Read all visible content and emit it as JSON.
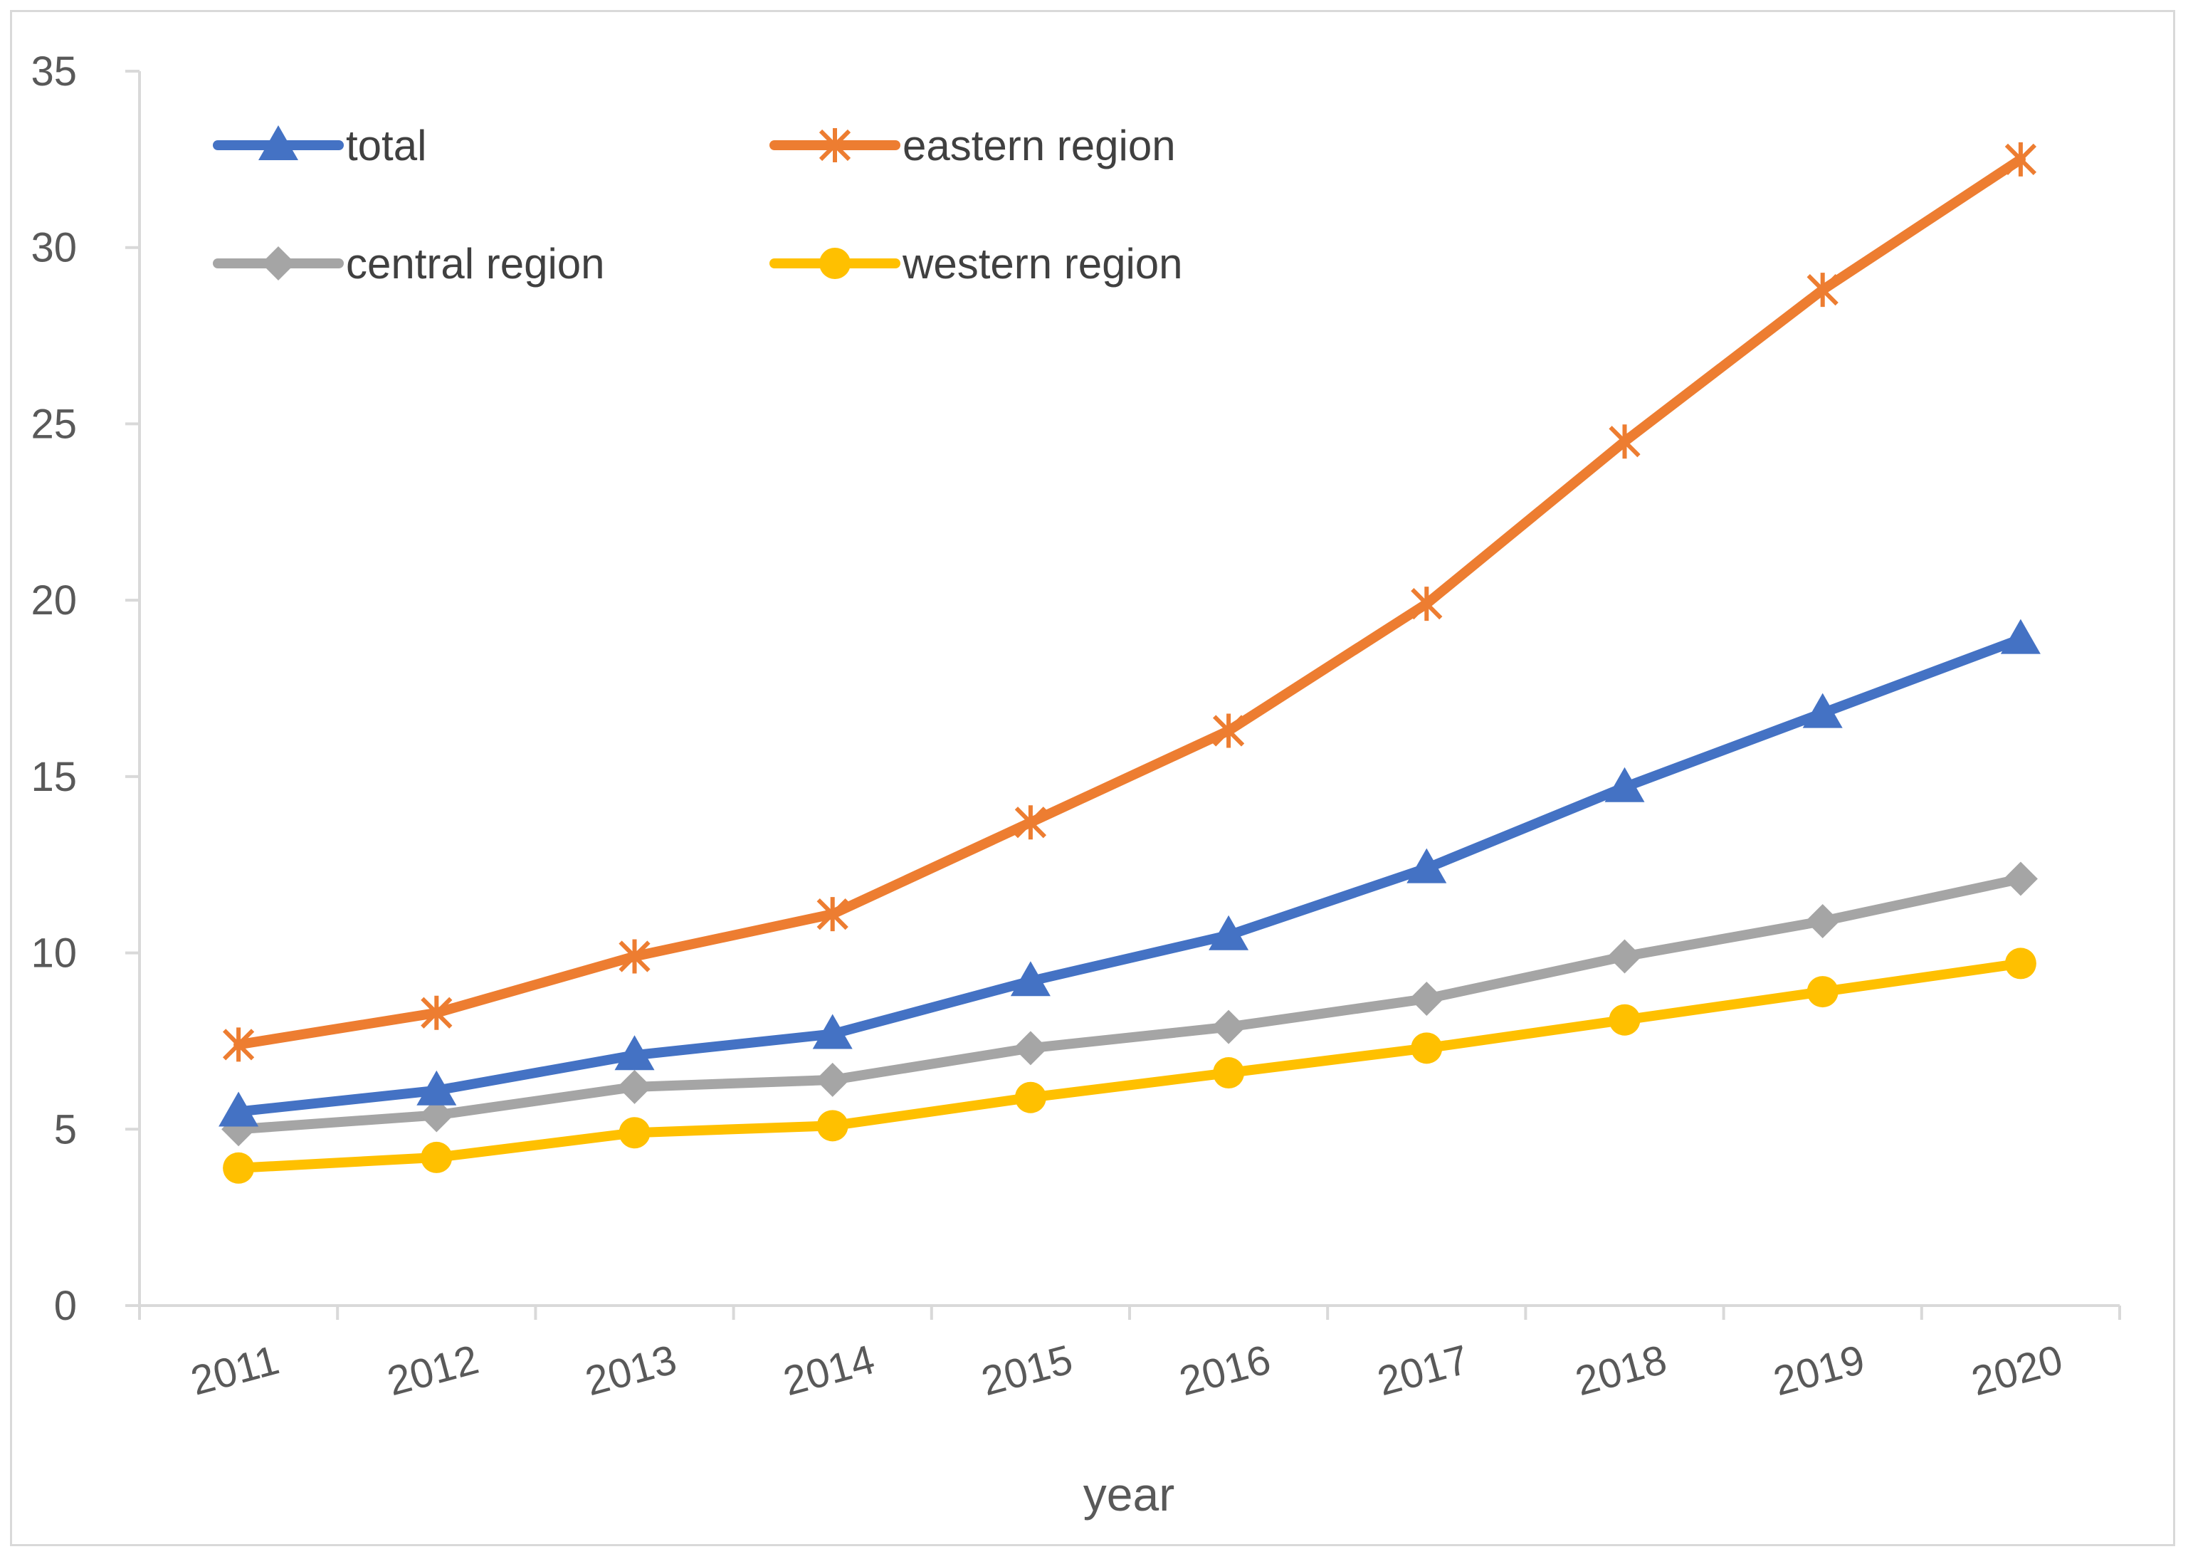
{
  "chart_data": {
    "type": "line",
    "title": "",
    "xlabel": "year",
    "ylabel": "",
    "categories": [
      "2011",
      "2012",
      "2013",
      "2014",
      "2015",
      "2016",
      "2017",
      "2018",
      "2019",
      "2020"
    ],
    "ylim": [
      0,
      35
    ],
    "yticks": [
      0,
      5,
      10,
      15,
      20,
      25,
      30,
      35
    ],
    "grid": false,
    "legend_position": "top-left",
    "series": [
      {
        "name": "total",
        "color": "#4472c4",
        "marker": "triangle",
        "values": [
          5.5,
          6.1,
          7.1,
          7.7,
          9.2,
          10.5,
          12.4,
          14.7,
          16.8,
          18.9
        ]
      },
      {
        "name": "eastern region",
        "color": "#ed7d31",
        "marker": "star",
        "values": [
          7.4,
          8.3,
          9.9,
          11.1,
          13.7,
          16.3,
          19.9,
          24.5,
          28.8,
          32.5
        ]
      },
      {
        "name": "central region",
        "color": "#a5a5a5",
        "marker": "diamond",
        "values": [
          5.0,
          5.4,
          6.2,
          6.4,
          7.3,
          7.9,
          8.7,
          9.9,
          10.9,
          12.1
        ]
      },
      {
        "name": "western region",
        "color": "#ffc000",
        "marker": "circle",
        "values": [
          3.9,
          4.2,
          4.9,
          5.1,
          5.9,
          6.6,
          7.3,
          8.1,
          8.9,
          9.7
        ]
      }
    ]
  }
}
